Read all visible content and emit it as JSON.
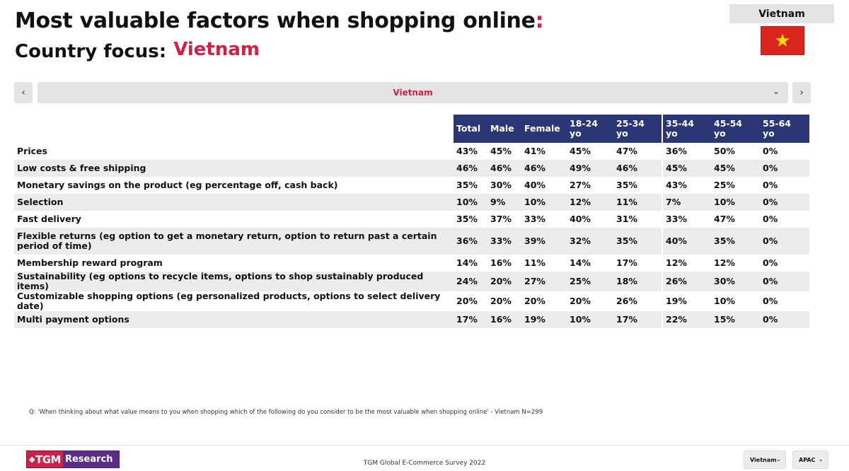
{
  "header": {
    "title": "Most valuable factors when shopping online",
    "title_colon": ":",
    "subtitle_label": "Country focus:",
    "subtitle_country": "Vietnam"
  },
  "country_badge": {
    "name": "Vietnam",
    "flag_icon": "vietnam-flag-icon",
    "flag_star": "★"
  },
  "navigator": {
    "prev_icon": "‹",
    "next_icon": "›",
    "selected": "Vietnam",
    "dropdown_icon": "⌄"
  },
  "table": {
    "columns": [
      {
        "label": "Total",
        "line2": ""
      },
      {
        "label": "Male",
        "line2": ""
      },
      {
        "label": "Female",
        "line2": ""
      },
      {
        "label": "18-24",
        "line2": "yo"
      },
      {
        "label": "25-34",
        "line2": "yo"
      },
      {
        "label": "35-44",
        "line2": "yo"
      },
      {
        "label": "45-54",
        "line2": "yo"
      },
      {
        "label": "55-64",
        "line2": "yo"
      }
    ],
    "rows": [
      {
        "label": "Prices",
        "values": [
          "43%",
          "45%",
          "41%",
          "45%",
          "47%",
          "36%",
          "50%",
          "0%"
        ]
      },
      {
        "label": "Low costs & free shipping",
        "values": [
          "46%",
          "46%",
          "46%",
          "49%",
          "46%",
          "45%",
          "45%",
          "0%"
        ]
      },
      {
        "label": "Monetary savings on the product (eg percentage off, cash back)",
        "values": [
          "35%",
          "30%",
          "40%",
          "27%",
          "35%",
          "43%",
          "25%",
          "0%"
        ]
      },
      {
        "label": "Selection",
        "values": [
          "10%",
          "9%",
          "10%",
          "12%",
          "11%",
          "7%",
          "10%",
          "0%"
        ]
      },
      {
        "label": "Fast delivery",
        "values": [
          "35%",
          "37%",
          "33%",
          "40%",
          "31%",
          "33%",
          "47%",
          "0%"
        ]
      },
      {
        "label": "Flexible returns (eg option to get a monetary return, option to return past a certain period of time)",
        "values": [
          "36%",
          "33%",
          "39%",
          "32%",
          "35%",
          "40%",
          "35%",
          "0%"
        ]
      },
      {
        "label": "Membership reward program",
        "values": [
          "14%",
          "16%",
          "11%",
          "14%",
          "17%",
          "12%",
          "12%",
          "0%"
        ]
      },
      {
        "label": "Sustainability (eg options to recycle items, options to shop sustainably produced items)",
        "values": [
          "24%",
          "20%",
          "27%",
          "25%",
          "18%",
          "26%",
          "30%",
          "0%"
        ]
      },
      {
        "label": "Customizable shopping options (eg personalized products, options to select delivery date)",
        "values": [
          "20%",
          "20%",
          "20%",
          "20%",
          "26%",
          "19%",
          "10%",
          "0%"
        ]
      },
      {
        "label": "Multi payment options",
        "values": [
          "17%",
          "16%",
          "19%",
          "10%",
          "17%",
          "22%",
          "15%",
          "0%"
        ]
      }
    ]
  },
  "footnote": "Q: 'When thinking about what value means to you when shopping which of the following do you consider to be the most valuable when shopping online' - Vietnam N=299",
  "footer": {
    "logo_mark": "TGM",
    "logo_symbol": "◆",
    "logo_word": "Research",
    "survey_name": "TGM Global E-Commerce Survey 2022",
    "country_filter": "Vietnam",
    "region_filter": "APAC",
    "dropdown_icon": "⌄"
  },
  "colors": {
    "accent": "#d31f47",
    "header_bg": "#2b3675",
    "row_alt": "#ececec",
    "flag_red": "#da251d",
    "flag_star": "#ffdd00"
  }
}
